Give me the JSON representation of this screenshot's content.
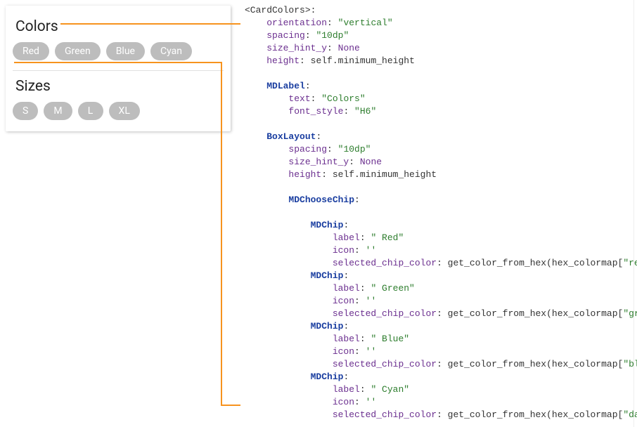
{
  "card": {
    "colors_label": "Colors",
    "sizes_label": "Sizes",
    "color_chips": [
      "Red",
      "Green",
      "Blue",
      "Cyan"
    ],
    "size_chips": [
      "S",
      "M",
      "L",
      "XL"
    ],
    "chip_bg": "#bdbdbd",
    "chip_fg": "#ffffff",
    "card_bg": "#ffffff",
    "divider": "#e0e0e0"
  },
  "connector_color": "#f7931e",
  "code": {
    "font": "monospace",
    "fontsize": 13,
    "lineheight": 18,
    "colors": {
      "key": "#6b2f8f",
      "string": "#2d7d2d",
      "classname": "#1a3ea0",
      "text": "#333333"
    },
    "root_tag": "<CardColors>",
    "root_props": [
      {
        "k": "orientation",
        "v": "\"vertical\""
      },
      {
        "k": "spacing",
        "v": "\"10dp\""
      },
      {
        "k": "size_hint_y",
        "v": "None"
      },
      {
        "k": "height",
        "v": "self.minimum_height"
      }
    ],
    "mdlabel": {
      "name": "MDLabel",
      "props": [
        {
          "k": "text",
          "v": "\"Colors\""
        },
        {
          "k": "font_style",
          "v": "\"H6\""
        }
      ]
    },
    "boxlayout": {
      "name": "BoxLayout",
      "props": [
        {
          "k": "spacing",
          "v": "\"10dp\""
        },
        {
          "k": "size_hint_y",
          "v": "None"
        },
        {
          "k": "height",
          "v": "self.minimum_height"
        }
      ]
    },
    "choosechip": "MDChooseChip",
    "chips": [
      {
        "name": "MDChip",
        "label": "\" Red\"",
        "icon": "''",
        "sel": "get_color_from_hex(hex_colormap[",
        "selarg": "\"red\"",
        "seltail": "])"
      },
      {
        "name": "MDChip",
        "label": "\" Green\"",
        "icon": "''",
        "sel": "get_color_from_hex(hex_colormap[",
        "selarg": "\"green\"",
        "seltail": "])"
      },
      {
        "name": "MDChip",
        "label": "\" Blue\"",
        "icon": "''",
        "sel": "get_color_from_hex(hex_colormap[",
        "selarg": "\"blue\"",
        "seltail": "])"
      },
      {
        "name": "MDChip",
        "label": "\" Cyan\"",
        "icon": "''",
        "sel": "get_color_from_hex(hex_colormap[",
        "selarg": "\"darkcyan\"",
        "seltail": "])"
      }
    ]
  }
}
